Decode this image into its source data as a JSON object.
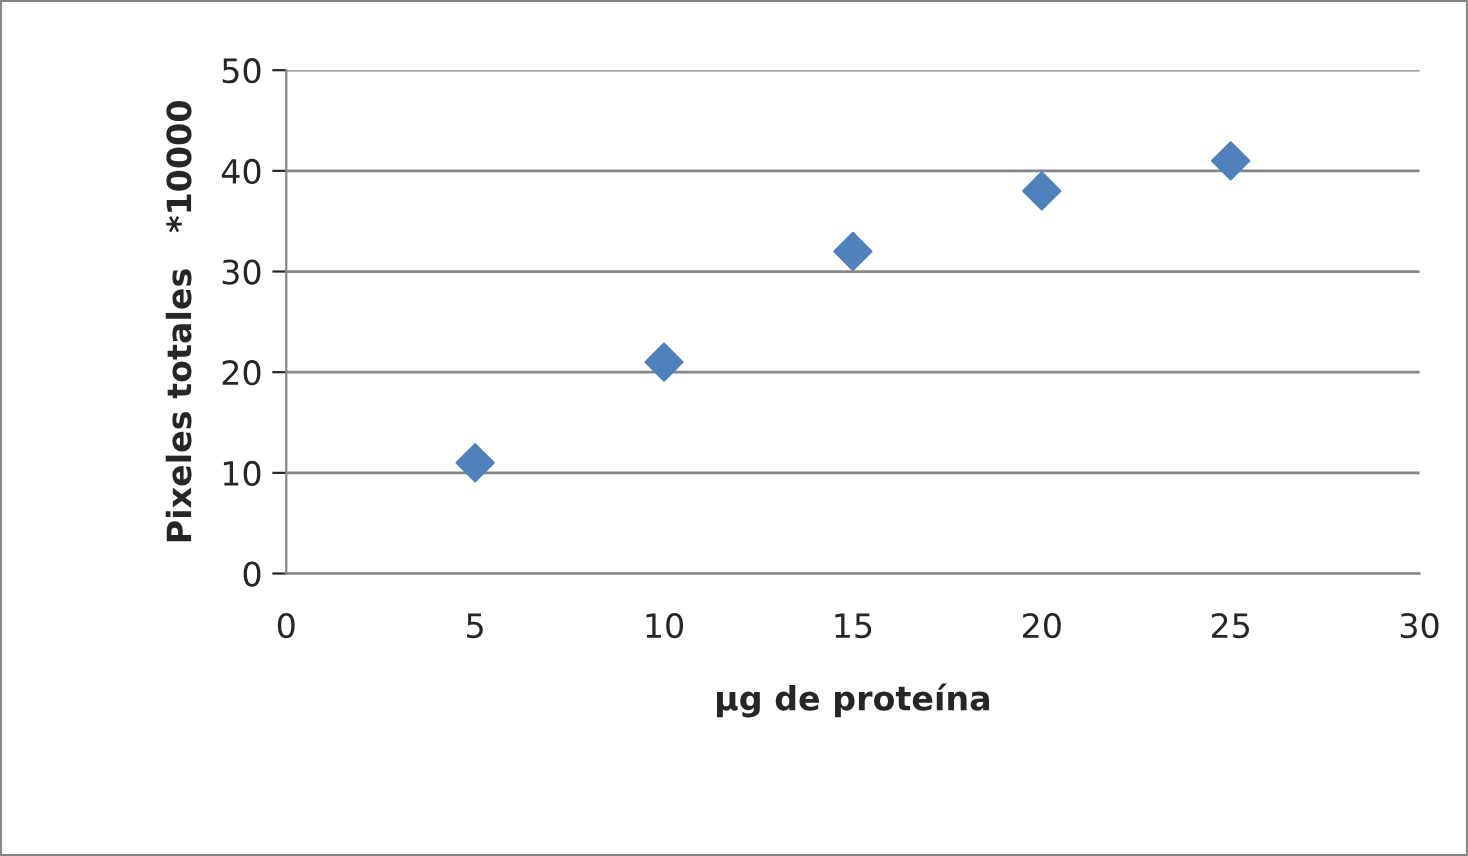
{
  "chart_data": {
    "type": "scatter",
    "xlabel": "µg de proteína",
    "ylabel": "Pixeles totales   *10000",
    "x": [
      5,
      10,
      15,
      20,
      25
    ],
    "series": [
      {
        "color": "#4f81bd",
        "values": [
          11,
          21,
          32,
          38,
          41
        ]
      }
    ],
    "xlim": [
      0,
      30
    ],
    "xticks": [
      0,
      5,
      10,
      15,
      20,
      25,
      30
    ],
    "ylim": [
      0,
      50
    ],
    "yticks": [
      0,
      10,
      20,
      30,
      40,
      50
    ],
    "grid": "y",
    "marker": "diamond"
  }
}
